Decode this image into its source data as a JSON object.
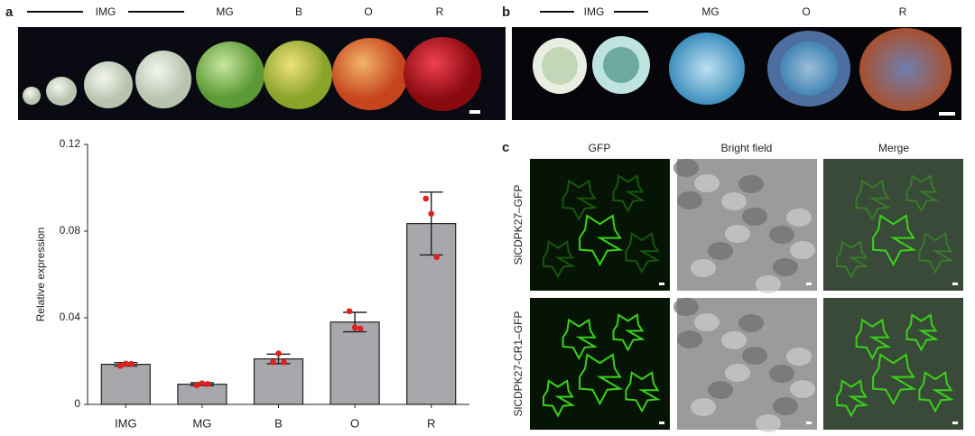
{
  "panel_a": {
    "letter": "a",
    "stages": [
      "IMG",
      "MG",
      "B",
      "O",
      "R"
    ]
  },
  "panel_b": {
    "letter": "b",
    "stages": [
      "IMG",
      "MG",
      "O",
      "R"
    ]
  },
  "panel_c": {
    "letter": "c",
    "columns": [
      "GFP",
      "Bright field",
      "Merge"
    ],
    "rows": [
      "SlCDPK27–GFP",
      "SlCDPK27-CR1–GFP"
    ]
  },
  "chart_data": {
    "type": "bar",
    "ylabel": "Relative expression",
    "categories": [
      "IMG",
      "MG",
      "B",
      "O",
      "R"
    ],
    "values": [
      0.0185,
      0.0093,
      0.021,
      0.038,
      0.0835
    ],
    "errors": [
      0.0008,
      0.0007,
      0.0022,
      0.0045,
      0.0145
    ],
    "points": [
      [
        0.0178,
        0.0188,
        0.0187
      ],
      [
        0.0088,
        0.0097,
        0.0094
      ],
      [
        0.0195,
        0.0235,
        0.0195
      ],
      [
        0.043,
        0.0355,
        0.035
      ],
      [
        0.095,
        0.088,
        0.068
      ]
    ],
    "color": "#a8a7ac",
    "point_color": "#e0201b",
    "ylim": [
      0,
      0.12
    ],
    "yticks": [
      0,
      0.04,
      0.08,
      0.12
    ],
    "grid": false
  }
}
